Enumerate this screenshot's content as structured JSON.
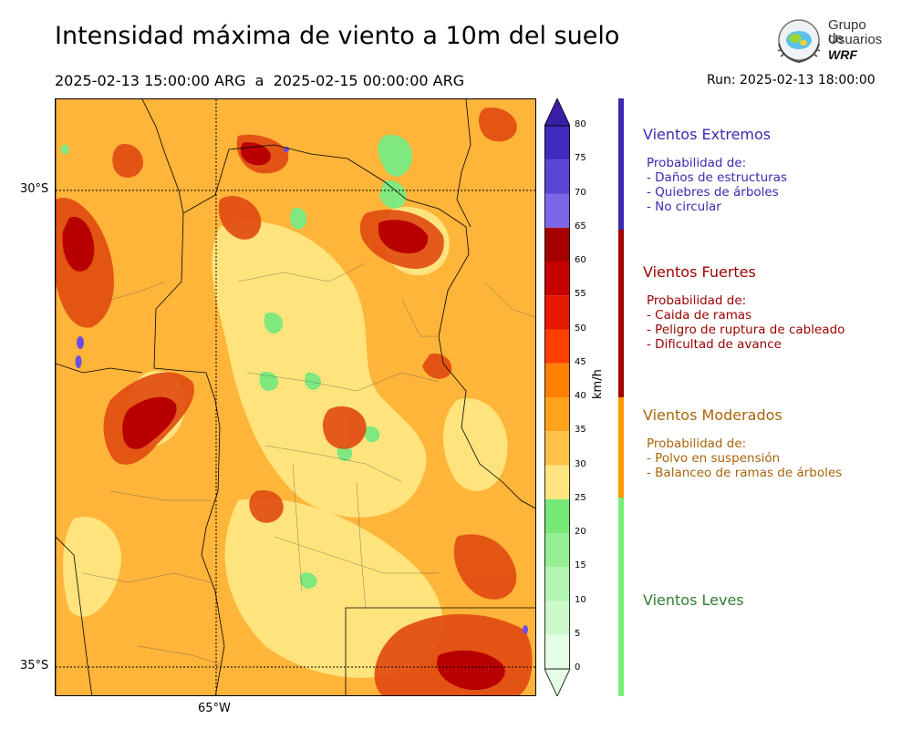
{
  "title": "Intensidad máxima de viento a 10m del suelo",
  "subtitle": "2025-02-13 15:00:00 ARG  a  2025-02-15 00:00:00 ARG",
  "run": "Run: 2025-02-13 18:00:00",
  "logo": {
    "line1": "Grupo de",
    "line2": "Usuarios",
    "line3": "WRF"
  },
  "map": {
    "lat_labels": [
      "30°S",
      "35°S"
    ],
    "lon_labels": [
      "65°W"
    ]
  },
  "colorbar": {
    "unit": "km/h",
    "ticks": [
      "0",
      "5",
      "10",
      "15",
      "20",
      "25",
      "30",
      "35",
      "40",
      "45",
      "50",
      "55",
      "60",
      "65",
      "70",
      "75",
      "80"
    ],
    "colors": [
      "#e6fde6",
      "#ccf9cc",
      "#b2f5b2",
      "#95ef95",
      "#77e877",
      "#ffe57f",
      "#ffc247",
      "#ffa31c",
      "#ff7f00",
      "#ff3f00",
      "#e51a00",
      "#c70000",
      "#a50000",
      "#7b68e8",
      "#5a46d4",
      "#3f2bbd",
      "#3a1fa6"
    ]
  },
  "categories": [
    {
      "title": "Vientos Extremos",
      "color": "#3a2bb0",
      "lines": [
        "Probabilidad de:",
        "- Daños de estructuras",
        "- Quiebres de árboles",
        "- No circular"
      ]
    },
    {
      "title": "Vientos Fuertes",
      "color": "#9b0000",
      "lines": [
        "Probabilidad de:",
        "- Caida de ramas",
        "- Peligro de ruptura de cableado",
        "- Dificultad de avance"
      ]
    },
    {
      "title": "Vientos Moderados",
      "color": "#a8650a",
      "lines": [
        "Probabilidad de:",
        "- Polvo en suspensión",
        "- Balanceo de ramas de árboles"
      ]
    },
    {
      "title": "Vientos Leves",
      "color": "#2e7d32",
      "lines": []
    }
  ],
  "category_bar_colors": [
    "#3a2bb0",
    "#a30000",
    "#ff9900",
    "#77ee77"
  ]
}
